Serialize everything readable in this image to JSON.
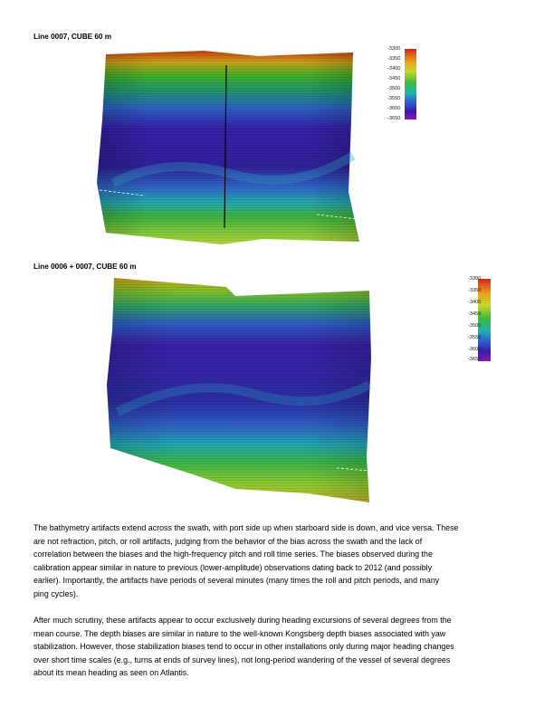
{
  "figures": [
    {
      "caption": "Line 0007, CUBE 60 m",
      "legend_ticks": [
        "-3300",
        "-3350",
        "-3400",
        "-3450",
        "-3500",
        "-3550",
        "-3600",
        "-3650"
      ]
    },
    {
      "caption": "Line 0006 + 0007, CUBE 60 m",
      "legend_ticks": [
        "-3300",
        "-3350",
        "-3400",
        "-3450",
        "-3500",
        "-3550",
        "-3600",
        "-3650"
      ]
    }
  ],
  "paragraphs": [
    {
      "lines": [
        "The bathymetry artifacts extend across the swath, with port side up when starboard side is down, and vice versa.  These",
        "are not refraction, pitch, or roll artifacts, judging from the behavior of the bias across the swath and the lack of",
        "correlation between the biases and the high-frequency pitch and roll time series.  The biases observed during the",
        "calibration appear similar in nature to previous (lower-amplitude) observations dating back to 2012 (and possibly",
        "earlier).  Importantly, the artifacts have periods of several minutes (many times the roll and pitch periods, and many",
        "ping cycles)."
      ]
    },
    {
      "lines": [
        "After much scrutiny, these artifacts appear to occur exclusively during heading excursions of several degrees from the",
        "mean course.  The depth biases are similar in nature to the well-known Kongsberg depth biases associated with yaw",
        "stabilization.  However, those stabilization biases tend to occur in other installations only during major heading changes",
        "over short time scales (e.g., turns at ends of survey lines), not long-period wandering of the vessel of several degrees",
        "about its mean heading as seen on Atlantis."
      ]
    }
  ]
}
